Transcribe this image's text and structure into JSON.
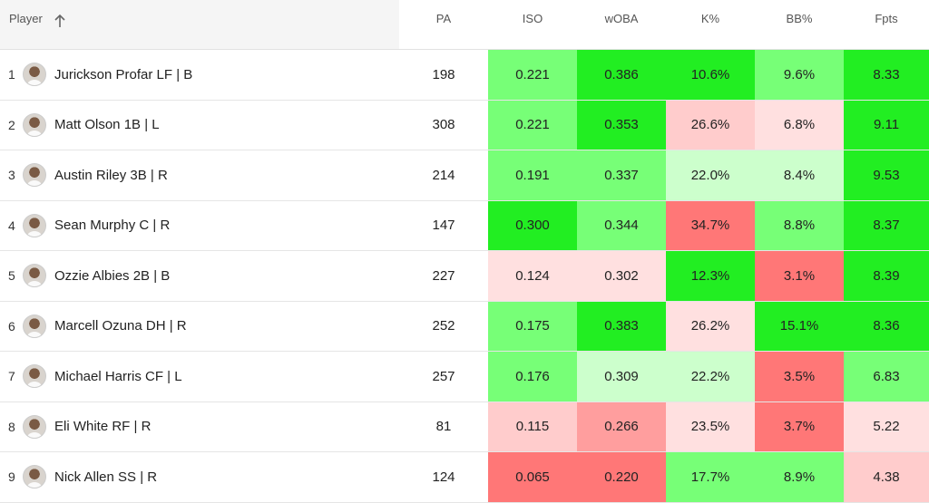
{
  "colors": {
    "g3": "#22ee22",
    "g2": "#77ff77",
    "g1": "#ccffcc",
    "r1": "#ffe0e0",
    "r2": "#ffcccc",
    "r3": "#ff9e9e",
    "r4": "#ff7777"
  },
  "header": {
    "player": "Player",
    "sort_icon": "arrow-up-icon",
    "pa": "PA",
    "iso": "ISO",
    "woba": "wOBA",
    "k": "K%",
    "bb": "BB%",
    "fpts": "Fpts"
  },
  "rows": [
    {
      "rank": "1",
      "name": "Jurickson Profar LF | B",
      "pa": "198",
      "iso": "0.221",
      "woba": "0.386",
      "k": "10.6%",
      "bb": "9.6%",
      "fpts": "8.33",
      "c_iso": "g2",
      "c_woba": "g3",
      "c_k": "g3",
      "c_bb": "g2",
      "c_fpts": "g3"
    },
    {
      "rank": "2",
      "name": "Matt Olson 1B | L",
      "pa": "308",
      "iso": "0.221",
      "woba": "0.353",
      "k": "26.6%",
      "bb": "6.8%",
      "fpts": "9.11",
      "c_iso": "g2",
      "c_woba": "g3",
      "c_k": "r2",
      "c_bb": "r1",
      "c_fpts": "g3"
    },
    {
      "rank": "3",
      "name": "Austin Riley 3B | R",
      "pa": "214",
      "iso": "0.191",
      "woba": "0.337",
      "k": "22.0%",
      "bb": "8.4%",
      "fpts": "9.53",
      "c_iso": "g2",
      "c_woba": "g2",
      "c_k": "g1",
      "c_bb": "g1",
      "c_fpts": "g3"
    },
    {
      "rank": "4",
      "name": "Sean Murphy C | R",
      "pa": "147",
      "iso": "0.300",
      "woba": "0.344",
      "k": "34.7%",
      "bb": "8.8%",
      "fpts": "8.37",
      "c_iso": "g3",
      "c_woba": "g2",
      "c_k": "r4",
      "c_bb": "g2",
      "c_fpts": "g3"
    },
    {
      "rank": "5",
      "name": "Ozzie Albies 2B | B",
      "pa": "227",
      "iso": "0.124",
      "woba": "0.302",
      "k": "12.3%",
      "bb": "3.1%",
      "fpts": "8.39",
      "c_iso": "r1",
      "c_woba": "r1",
      "c_k": "g3",
      "c_bb": "r4",
      "c_fpts": "g3"
    },
    {
      "rank": "6",
      "name": "Marcell Ozuna DH | R",
      "pa": "252",
      "iso": "0.175",
      "woba": "0.383",
      "k": "26.2%",
      "bb": "15.1%",
      "fpts": "8.36",
      "c_iso": "g2",
      "c_woba": "g3",
      "c_k": "r1",
      "c_bb": "g3",
      "c_fpts": "g3"
    },
    {
      "rank": "7",
      "name": "Michael Harris CF | L",
      "pa": "257",
      "iso": "0.176",
      "woba": "0.309",
      "k": "22.2%",
      "bb": "3.5%",
      "fpts": "6.83",
      "c_iso": "g2",
      "c_woba": "g1",
      "c_k": "g1",
      "c_bb": "r4",
      "c_fpts": "g2"
    },
    {
      "rank": "8",
      "name": "Eli White RF | R",
      "pa": "81",
      "iso": "0.115",
      "woba": "0.266",
      "k": "23.5%",
      "bb": "3.7%",
      "fpts": "5.22",
      "c_iso": "r2",
      "c_woba": "r3",
      "c_k": "r1",
      "c_bb": "r4",
      "c_fpts": "r1"
    },
    {
      "rank": "9",
      "name": "Nick Allen SS | R",
      "pa": "124",
      "iso": "0.065",
      "woba": "0.220",
      "k": "17.7%",
      "bb": "8.9%",
      "fpts": "4.38",
      "c_iso": "r4",
      "c_woba": "r4",
      "c_k": "g2",
      "c_bb": "g2",
      "c_fpts": "r2"
    }
  ]
}
